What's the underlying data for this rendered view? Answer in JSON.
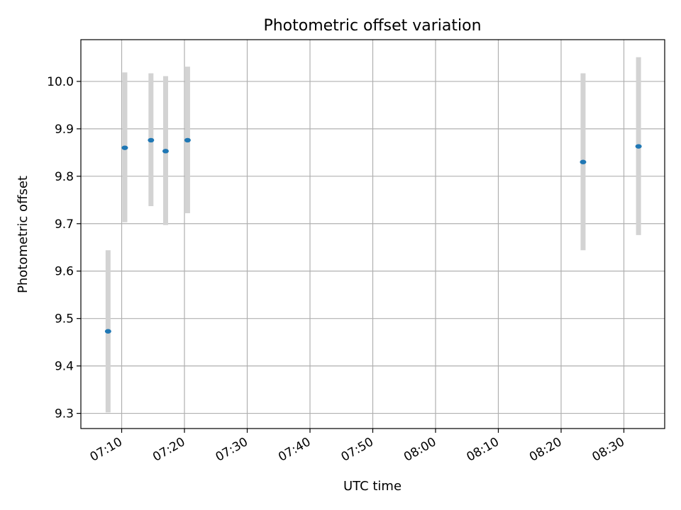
{
  "chart_data": {
    "type": "scatter",
    "title": "Photometric offset variation",
    "xlabel": "UTC time",
    "ylabel": "Photometric offset",
    "x_tick_labels": [
      "07:10",
      "07:20",
      "07:30",
      "07:40",
      "07:50",
      "08:00",
      "08:10",
      "08:20",
      "08:30"
    ],
    "x_ticks_minutes": [
      430,
      440,
      450,
      460,
      470,
      480,
      490,
      500,
      510
    ],
    "y_ticks": [
      9.3,
      9.4,
      9.5,
      9.6,
      9.7,
      9.8,
      9.9,
      10.0
    ],
    "y_tick_labels": [
      "9.3",
      "9.4",
      "9.5",
      "9.6",
      "9.7",
      "9.8",
      "9.9",
      "10.0"
    ],
    "xlim_minutes": [
      423.5,
      516.5
    ],
    "ylim": [
      9.268,
      10.088
    ],
    "grid": true,
    "points": [
      {
        "x": "07:07:50",
        "y": 9.473,
        "err_low": 9.302,
        "err_high": 9.644
      },
      {
        "x": "07:10:30",
        "y": 9.86,
        "err_low": 9.703,
        "err_high": 10.019
      },
      {
        "x": "07:14:40",
        "y": 9.876,
        "err_low": 9.737,
        "err_high": 10.017
      },
      {
        "x": "07:17:00",
        "y": 9.853,
        "err_low": 9.697,
        "err_high": 10.011
      },
      {
        "x": "07:20:30",
        "y": 9.876,
        "err_low": 9.722,
        "err_high": 10.031
      },
      {
        "x": "08:23:30",
        "y": 9.83,
        "err_low": 9.644,
        "err_high": 10.017
      },
      {
        "x": "08:32:20",
        "y": 9.863,
        "err_low": 9.676,
        "err_high": 10.051
      }
    ],
    "colors": {
      "marker": "#1f77b4",
      "errorbar": "#d3d3d3",
      "grid": "#b0b0b0",
      "axes": "#000000"
    }
  }
}
